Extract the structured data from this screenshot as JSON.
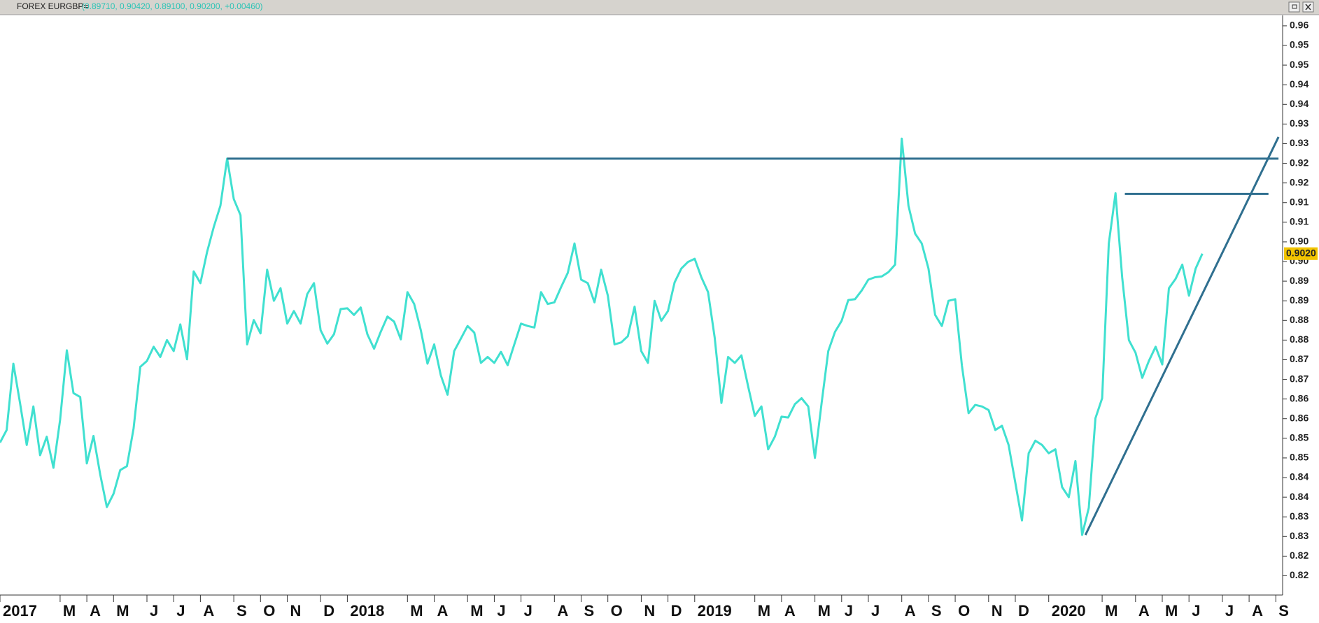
{
  "chart_data": {
    "type": "line",
    "title": "FOREX EURGBP=",
    "subtitle": "(0.89710, 0.90420, 0.89100, 0.90200, +0.00460)",
    "categories": [
      "2017",
      null,
      null,
      null,
      null,
      null,
      null,
      null,
      null,
      "M",
      null,
      null,
      null,
      "A",
      null,
      null,
      null,
      "M",
      null,
      null,
      null,
      null,
      "J",
      null,
      null,
      null,
      "J",
      null,
      null,
      null,
      "A",
      null,
      null,
      null,
      null,
      "S",
      null,
      null,
      null,
      "O",
      null,
      null,
      null,
      "N",
      null,
      null,
      null,
      null,
      "D",
      null,
      null,
      null,
      "2018",
      null,
      null,
      null,
      null,
      null,
      null,
      null,
      null,
      "M",
      null,
      null,
      null,
      "A",
      null,
      null,
      null,
      null,
      "M",
      null,
      null,
      null,
      "J",
      null,
      null,
      null,
      "J",
      null,
      null,
      null,
      null,
      "A",
      null,
      null,
      null,
      "S",
      null,
      null,
      null,
      "O",
      null,
      null,
      null,
      null,
      "N",
      null,
      null,
      null,
      "D",
      null,
      null,
      null,
      "2019",
      null,
      null,
      null,
      null,
      null,
      null,
      null,
      null,
      "M",
      null,
      null,
      null,
      "A",
      null,
      null,
      null,
      null,
      "M",
      null,
      null,
      null,
      "J",
      null,
      null,
      null,
      "J",
      null,
      null,
      null,
      null,
      "A",
      null,
      null,
      null,
      "S",
      null,
      null,
      null,
      "O",
      null,
      null,
      null,
      null,
      "N",
      null,
      null,
      null,
      "D",
      null,
      null,
      null,
      null,
      "2020",
      null,
      null,
      null,
      null,
      null,
      null,
      null,
      "M",
      null,
      null,
      null,
      null,
      "A",
      null,
      null,
      null,
      "M",
      null,
      null,
      null,
      "J",
      null,
      null,
      null,
      null,
      "J",
      null,
      null,
      null,
      "A",
      null,
      null,
      null,
      "S"
    ],
    "series": [
      {
        "name": "EURGBP",
        "color": "#40e0d0",
        "values": [
          0.8539,
          0.8571,
          0.874,
          0.864,
          0.8533,
          0.8631,
          0.8507,
          0.8554,
          0.8475,
          0.8597,
          0.8774,
          0.8665,
          0.8655,
          0.8486,
          0.8556,
          0.8458,
          0.8375,
          0.8409,
          0.8469,
          0.8479,
          0.8575,
          0.8732,
          0.8747,
          0.8783,
          0.8757,
          0.88,
          0.8772,
          0.884,
          0.8751,
          0.8975,
          0.8945,
          0.9024,
          0.9088,
          0.9142,
          0.9262,
          0.9159,
          0.9118,
          0.8789,
          0.8851,
          0.8817,
          0.8979,
          0.89,
          0.8932,
          0.8842,
          0.8874,
          0.8842,
          0.8917,
          0.8945,
          0.8825,
          0.8791,
          0.8815,
          0.8879,
          0.8881,
          0.8864,
          0.8883,
          0.8815,
          0.8778,
          0.8821,
          0.886,
          0.8847,
          0.8802,
          0.8922,
          0.8892,
          0.8825,
          0.874,
          0.8789,
          0.871,
          0.8661,
          0.8772,
          0.8804,
          0.8836,
          0.8819,
          0.8742,
          0.8757,
          0.8742,
          0.877,
          0.8736,
          0.8789,
          0.8842,
          0.8836,
          0.8832,
          0.8922,
          0.8892,
          0.8896,
          0.8935,
          0.8971,
          0.9046,
          0.8954,
          0.8945,
          0.8896,
          0.8979,
          0.8913,
          0.8789,
          0.8794,
          0.881,
          0.8885,
          0.8772,
          0.8742,
          0.89,
          0.8849,
          0.8874,
          0.8947,
          0.8982,
          0.8999,
          0.9007,
          0.896,
          0.8922,
          0.8806,
          0.864,
          0.8757,
          0.8742,
          0.8761,
          0.8682,
          0.8607,
          0.8631,
          0.8522,
          0.8554,
          0.8605,
          0.8603,
          0.8637,
          0.8652,
          0.8631,
          0.85,
          0.864,
          0.8772,
          0.8821,
          0.8849,
          0.8902,
          0.8904,
          0.8926,
          0.8954,
          0.896,
          0.8962,
          0.8973,
          0.8992,
          0.9313,
          0.9142,
          0.9071,
          0.9046,
          0.8982,
          0.8864,
          0.8836,
          0.89,
          0.8904,
          0.8736,
          0.8614,
          0.8635,
          0.8631,
          0.8622,
          0.8571,
          0.8582,
          0.8533,
          0.8437,
          0.8341,
          0.8512,
          0.8544,
          0.8533,
          0.8512,
          0.8522,
          0.8426,
          0.84,
          0.8492,
          0.8304,
          0.8373,
          0.8601,
          0.8652,
          0.9046,
          0.9174,
          0.896,
          0.88,
          0.8768,
          0.8704,
          0.8747,
          0.8783,
          0.8738,
          0.8932,
          0.8956,
          0.8992,
          0.8913,
          0.8982,
          0.902,
          null,
          null,
          null,
          null,
          null,
          null,
          null,
          null,
          null,
          null,
          null
        ]
      }
    ],
    "last_price": {
      "value": 0.902,
      "label": "0.9020"
    },
    "lines": [
      {
        "color": "#2f6f8f",
        "x": [
          34,
          191.4
        ],
        "y": [
          0.9262,
          0.9262
        ]
      },
      {
        "color": "#2f6f8f",
        "x": [
          168.4,
          189.9
        ],
        "y": [
          0.9172,
          0.9172
        ]
      },
      {
        "color": "#2f6f8f",
        "x": [
          162.5,
          191.4
        ],
        "y": [
          0.8304,
          0.9317
        ]
      }
    ],
    "ylim": [
      0.8151,
      0.9623
    ],
    "yticks": [
      0.82,
      {
        "value": 0.825,
        "label": "0.82"
      },
      0.83,
      {
        "value": 0.835,
        "label": "0.83"
      },
      0.84,
      {
        "value": 0.845,
        "label": "0.84"
      },
      0.85,
      {
        "value": 0.855,
        "label": "0.85"
      },
      0.86,
      {
        "value": 0.865,
        "label": "0.86"
      },
      0.87,
      {
        "value": 0.875,
        "label": "0.87"
      },
      0.88,
      {
        "value": 0.885,
        "label": "0.88"
      },
      0.89,
      {
        "value": 0.895,
        "label": "0.89"
      },
      {
        "value": 0.9,
        "label": "0.90"
      },
      {
        "value": 0.905,
        "label": "0.90"
      },
      0.91,
      {
        "value": 0.915,
        "label": "0.91"
      },
      0.92,
      {
        "value": 0.925,
        "label": "0.92"
      },
      0.93,
      {
        "value": 0.935,
        "label": "0.93"
      },
      0.94,
      {
        "value": 0.945,
        "label": "0.94"
      },
      {
        "value": 0.95,
        "label": "0.95"
      },
      {
        "value": 0.955,
        "label": "0.95"
      },
      0.96
    ],
    "grid": false
  }
}
